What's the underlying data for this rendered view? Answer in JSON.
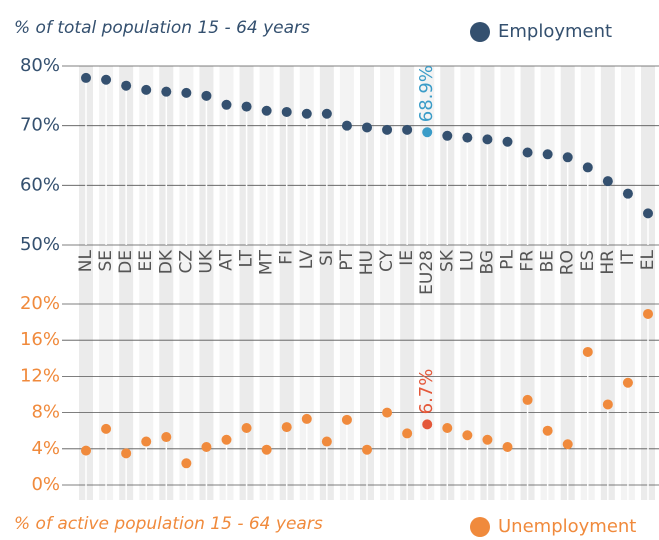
{
  "chart_data": [
    {
      "type": "lollipop",
      "title": "% of total population 15 - 64 years",
      "categories": [
        "NL",
        "SE",
        "DE",
        "EE",
        "DK",
        "CZ",
        "UK",
        "AT",
        "LT",
        "MT",
        "FI",
        "LV",
        "SI",
        "PT",
        "HU",
        "CY",
        "IE",
        "EU28",
        "SK",
        "LU",
        "BG",
        "PL",
        "FR",
        "BE",
        "RO",
        "ES",
        "HR",
        "IT",
        "EL"
      ],
      "series": [
        {
          "name": "Employment",
          "color": "#34506f",
          "values": [
            78.0,
            77.7,
            76.7,
            76.0,
            75.7,
            75.5,
            75.0,
            73.5,
            73.2,
            72.5,
            72.3,
            72.0,
            72.0,
            70.0,
            69.7,
            69.3,
            69.3,
            68.9,
            68.3,
            68.0,
            67.7,
            67.3,
            65.5,
            65.2,
            64.7,
            63.0,
            60.7,
            58.6,
            55.3
          ],
          "value_labels": [
            null,
            null,
            null,
            null,
            null,
            null,
            null,
            null,
            null,
            null,
            null,
            null,
            null,
            null,
            null,
            null,
            null,
            "68.9%",
            null,
            null,
            null,
            null,
            null,
            null,
            null,
            null,
            null,
            null,
            null
          ]
        }
      ],
      "highlight": "EU28",
      "highlight_color": "#3a9cc8",
      "ylim": [
        50,
        80
      ],
      "yticks": [
        {
          "value": 50,
          "label": "50%"
        },
        {
          "value": 60,
          "label": "60%"
        },
        {
          "value": 70,
          "label": "70%"
        },
        {
          "value": 80,
          "label": "80%"
        }
      ],
      "grid": true
    },
    {
      "type": "lollipop",
      "title": "% of active population 15 - 64 years",
      "series": [
        {
          "name": "Unemployment",
          "color": "#f08a3c",
          "values": [
            3.8,
            6.2,
            3.5,
            4.8,
            5.3,
            2.4,
            4.2,
            5.0,
            6.3,
            3.9,
            6.4,
            7.3,
            4.8,
            7.2,
            3.9,
            8.0,
            5.7,
            6.7,
            6.3,
            5.5,
            5.0,
            4.2,
            9.4,
            6.0,
            4.5,
            14.7,
            8.9,
            11.3,
            18.9
          ],
          "value_labels": [
            null,
            null,
            null,
            null,
            null,
            null,
            null,
            null,
            null,
            null,
            null,
            null,
            null,
            null,
            null,
            null,
            null,
            "6.7%",
            null,
            null,
            null,
            null,
            null,
            null,
            null,
            null,
            null,
            null,
            null
          ]
        }
      ],
      "highlight": "EU28",
      "highlight_color": "#e4583a",
      "ylim": [
        0,
        20
      ],
      "yticks": [
        {
          "value": 0,
          "label": "0%"
        },
        {
          "value": 4,
          "label": "4%"
        },
        {
          "value": 8,
          "label": "8%"
        },
        {
          "value": 12,
          "label": "12%"
        },
        {
          "value": 16,
          "label": "16%"
        },
        {
          "value": 20,
          "label": "20%"
        }
      ],
      "grid": true
    }
  ]
}
